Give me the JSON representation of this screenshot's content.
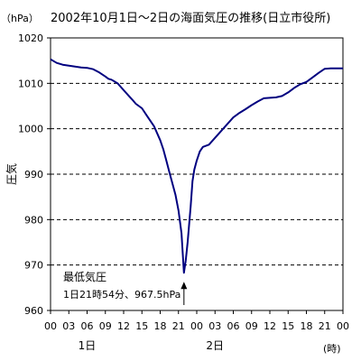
{
  "chart_data": {
    "type": "line",
    "title": "2002年10月1日～2日の海面気圧の推移(日立市役所)",
    "unit_label": "（hPa）",
    "ylabel": "圧気",
    "xlabel": "(時)",
    "ylim": [
      960,
      1020
    ],
    "yticks": [
      960,
      970,
      980,
      990,
      1000,
      1010,
      1020
    ],
    "ytick_labels": [
      "960",
      "970",
      "980",
      "990",
      "1000",
      "1010",
      "1020"
    ],
    "xlim": [
      0,
      48
    ],
    "xticks": [
      0,
      3,
      6,
      9,
      12,
      15,
      18,
      21,
      24,
      27,
      30,
      33,
      36,
      39,
      42,
      45,
      48
    ],
    "xtick_labels": [
      "00",
      "03",
      "06",
      "09",
      "12",
      "15",
      "18",
      "21",
      "00",
      "03",
      "06",
      "09",
      "12",
      "15",
      "18",
      "21",
      "00"
    ],
    "day_labels": [
      {
        "text": "1日",
        "x": 6
      },
      {
        "text": "2日",
        "x": 27
      }
    ],
    "grid": "horizontal dashed",
    "line_color": "#000080",
    "series": [
      {
        "x": [
          0,
          1,
          2,
          3,
          4,
          5,
          6,
          7,
          8,
          9,
          9.5,
          10,
          11,
          12,
          13,
          13.5,
          14,
          15,
          16,
          17,
          18,
          18.5,
          19,
          19.5,
          20,
          20.5,
          21,
          21.5,
          21.9,
          22.2,
          22.5,
          23,
          23.3,
          23.6,
          24,
          24.5,
          25,
          26,
          27,
          28,
          29,
          30,
          31,
          32,
          33,
          34,
          35,
          36,
          37,
          38,
          39,
          40,
          41,
          42,
          43,
          44,
          45,
          46,
          47,
          48
        ],
        "values": [
          1015.3,
          1014.5,
          1014.1,
          1013.9,
          1013.7,
          1013.5,
          1013.4,
          1013.1,
          1012.4,
          1011.5,
          1011.0,
          1010.8,
          1010.0,
          1008.5,
          1007.0,
          1006.3,
          1005.5,
          1004.5,
          1002.5,
          1000.5,
          997.5,
          995.5,
          993.0,
          990.5,
          988.0,
          985.5,
          982.0,
          977.0,
          968.3,
          971.0,
          975.0,
          983.0,
          988.5,
          991.0,
          993.0,
          995.0,
          996.0,
          996.5,
          998.0,
          999.5,
          1001.0,
          1002.5,
          1003.5,
          1004.3,
          1005.2,
          1006.0,
          1006.7,
          1006.8,
          1006.9,
          1007.2,
          1008.0,
          1009.0,
          1009.8,
          1010.3,
          1011.3,
          1012.3,
          1013.2,
          1013.3,
          1013.3,
          1013.3
        ]
      }
    ],
    "annotation": {
      "line1": "最低気圧",
      "line2": "1日21時54分、967.5hPa",
      "target_x": 21.9,
      "target_y": 967.5
    }
  }
}
